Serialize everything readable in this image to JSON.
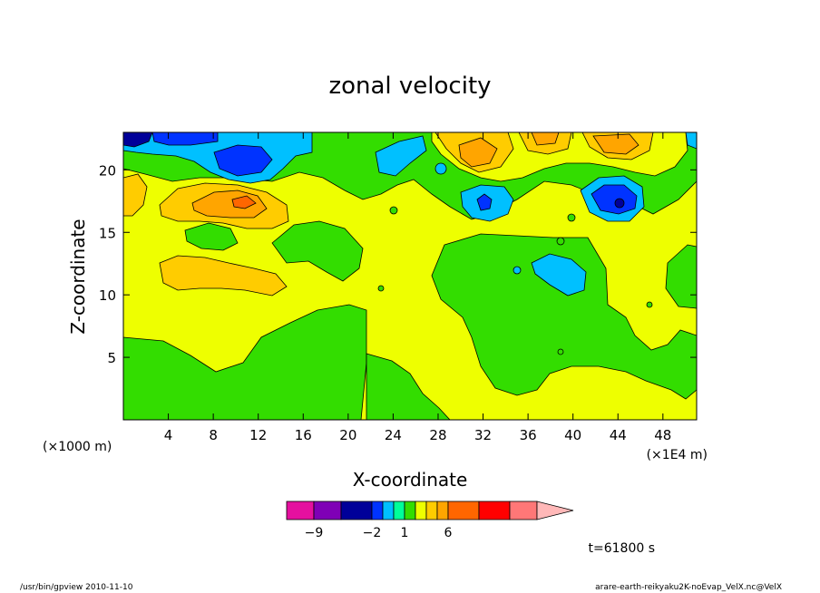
{
  "chart_data": {
    "type": "heatmap",
    "title": "zonal velocity",
    "xlabel": "X-coordinate",
    "ylabel": "Z-coordinate",
    "x_unit_left": "(×1000 m)",
    "x_unit_right": "(×1E4 m)",
    "xlim": [
      0,
      51
    ],
    "ylim": [
      0,
      23
    ],
    "x_ticks": [
      4,
      8,
      12,
      16,
      20,
      24,
      28,
      32,
      36,
      40,
      44,
      48
    ],
    "y_ticks": [
      5,
      10,
      15,
      20
    ],
    "time_label": "t=61800 s",
    "colorbar": {
      "levels": [
        -15,
        -9,
        -5,
        -2,
        -1,
        0,
        1,
        2,
        3,
        4,
        6,
        9,
        12
      ],
      "tick_labels": [
        {
          "value": -9,
          "label": "−9"
        },
        {
          "value": -2,
          "label": "−2"
        },
        {
          "value": 1,
          "label": "1"
        },
        {
          "value": 6,
          "label": "6"
        }
      ],
      "colors": [
        "#e5109f",
        "#7f00b6",
        "#000099",
        "#0033ff",
        "#00c0ff",
        "#00ff99",
        "#33dd00",
        "#eeff00",
        "#ffcc00",
        "#ffa500",
        "#ff6600",
        "#ff0000",
        "#ff7777",
        "#ffb8b8"
      ]
    },
    "regions": [
      {
        "x": 10,
        "y": 18.5,
        "color": "#ff6600",
        "label": "orange core near x≈10, z≈18"
      },
      {
        "x": 2,
        "y": 22.5,
        "color": "#000099",
        "label": "dark blue top-left"
      },
      {
        "x": 10,
        "y": 21,
        "color": "#0033ff",
        "label": "blue top-left"
      },
      {
        "x": 44,
        "y": 17.5,
        "color": "#000099",
        "label": "dark blue core near x≈44"
      },
      {
        "x": 33,
        "y": 17,
        "color": "#0033ff",
        "label": "blue spot near x≈32"
      },
      {
        "x": 40,
        "y": 12,
        "color": "#00c0ff",
        "label": "cyan near x≈40, z≈12"
      },
      {
        "x": 44,
        "y": 22,
        "color": "#ff6600",
        "label": "orange top-right"
      }
    ]
  },
  "footer": {
    "left": "/usr/bin/gpview   2010-11-10",
    "right": "arare-earth-reikyaku2K-noEvap_VelX.nc@VelX"
  }
}
